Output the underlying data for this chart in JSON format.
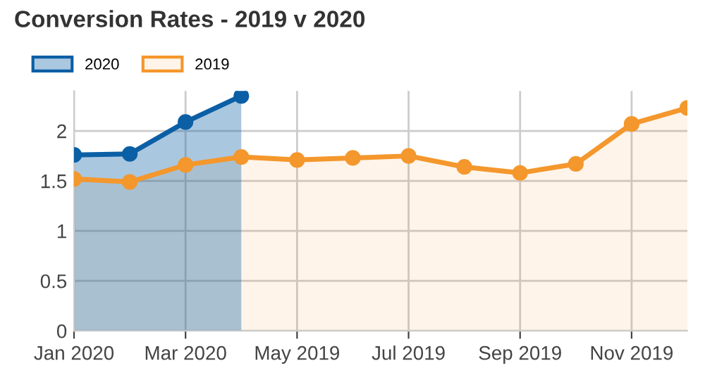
{
  "chart_data": {
    "type": "area",
    "title": "Conversion Rates - 2019 v 2020",
    "categories": [
      "Jan 2020",
      null,
      "Mar 2020",
      null,
      "May 2019",
      null,
      "Jul 2019",
      null,
      "Sep 2019",
      null,
      "Nov 2019",
      null
    ],
    "series": [
      {
        "name": "2020",
        "color": "#0b5fa5",
        "values": [
          1.76,
          1.77,
          2.09,
          2.35,
          null,
          null,
          null,
          null,
          null,
          null,
          null,
          null
        ]
      },
      {
        "name": "2019",
        "color": "#f4972c",
        "values": [
          1.52,
          1.49,
          1.66,
          1.74,
          1.71,
          1.73,
          1.75,
          1.64,
          1.58,
          1.67,
          2.07,
          2.23
        ]
      }
    ],
    "ylim": [
      0,
      2.4
    ],
    "yticks": [
      0,
      0.5,
      1,
      1.5,
      2
    ],
    "grid": true,
    "legend": "top left",
    "marker": "circle",
    "line_style": "solid"
  }
}
